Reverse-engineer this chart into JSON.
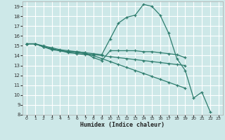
{
  "xlabel": "Humidex (Indice chaleur)",
  "bg_color": "#cde8e8",
  "grid_color": "#ffffff",
  "line_color": "#2e7d6e",
  "xlim": [
    -0.5,
    23.5
  ],
  "ylim": [
    8,
    19.5
  ],
  "xticks": [
    0,
    1,
    2,
    3,
    4,
    5,
    6,
    7,
    8,
    9,
    10,
    11,
    12,
    13,
    14,
    15,
    16,
    17,
    18,
    19,
    20,
    21,
    22,
    23
  ],
  "yticks": [
    8,
    9,
    10,
    11,
    12,
    13,
    14,
    15,
    16,
    17,
    18,
    19
  ],
  "line1_x": [
    0,
    1,
    2,
    3,
    4,
    5,
    6,
    7,
    8,
    9,
    10,
    11,
    12,
    13,
    14,
    15,
    16,
    17,
    18,
    19,
    20,
    21,
    22
  ],
  "line1_y": [
    15.2,
    15.2,
    15.0,
    14.8,
    14.6,
    14.5,
    14.4,
    14.3,
    14.2,
    14.1,
    15.7,
    17.3,
    17.9,
    18.1,
    19.2,
    19.0,
    18.1,
    16.3,
    13.7,
    12.5,
    9.7,
    10.3,
    8.3
  ],
  "line2_x": [
    0,
    1,
    2,
    3,
    4,
    5,
    6,
    7,
    8,
    9,
    10,
    11,
    12,
    13,
    14,
    15,
    16,
    17,
    18,
    19
  ],
  "line2_y": [
    15.2,
    15.2,
    14.9,
    14.6,
    14.5,
    14.4,
    14.4,
    14.3,
    13.8,
    13.5,
    14.5,
    14.5,
    14.5,
    14.5,
    14.4,
    14.4,
    14.3,
    14.2,
    14.1,
    13.8
  ],
  "line3_x": [
    0,
    1,
    2,
    3,
    4,
    5,
    6,
    7,
    8,
    9,
    10,
    11,
    12,
    13,
    14,
    15,
    16,
    17,
    18,
    19
  ],
  "line3_y": [
    15.2,
    15.2,
    14.9,
    14.7,
    14.5,
    14.4,
    14.3,
    14.2,
    14.1,
    14.0,
    13.9,
    13.8,
    13.7,
    13.6,
    13.5,
    13.4,
    13.3,
    13.2,
    13.1,
    13.0
  ],
  "line4_x": [
    0,
    1,
    2,
    3,
    4,
    5,
    6,
    7,
    8,
    9,
    10,
    11,
    12,
    13,
    14,
    15,
    16,
    17,
    18,
    19
  ],
  "line4_y": [
    15.2,
    15.2,
    14.9,
    14.7,
    14.5,
    14.3,
    14.2,
    14.1,
    14.0,
    13.7,
    13.4,
    13.1,
    12.8,
    12.5,
    12.2,
    11.9,
    11.6,
    11.3,
    11.0,
    10.7
  ]
}
